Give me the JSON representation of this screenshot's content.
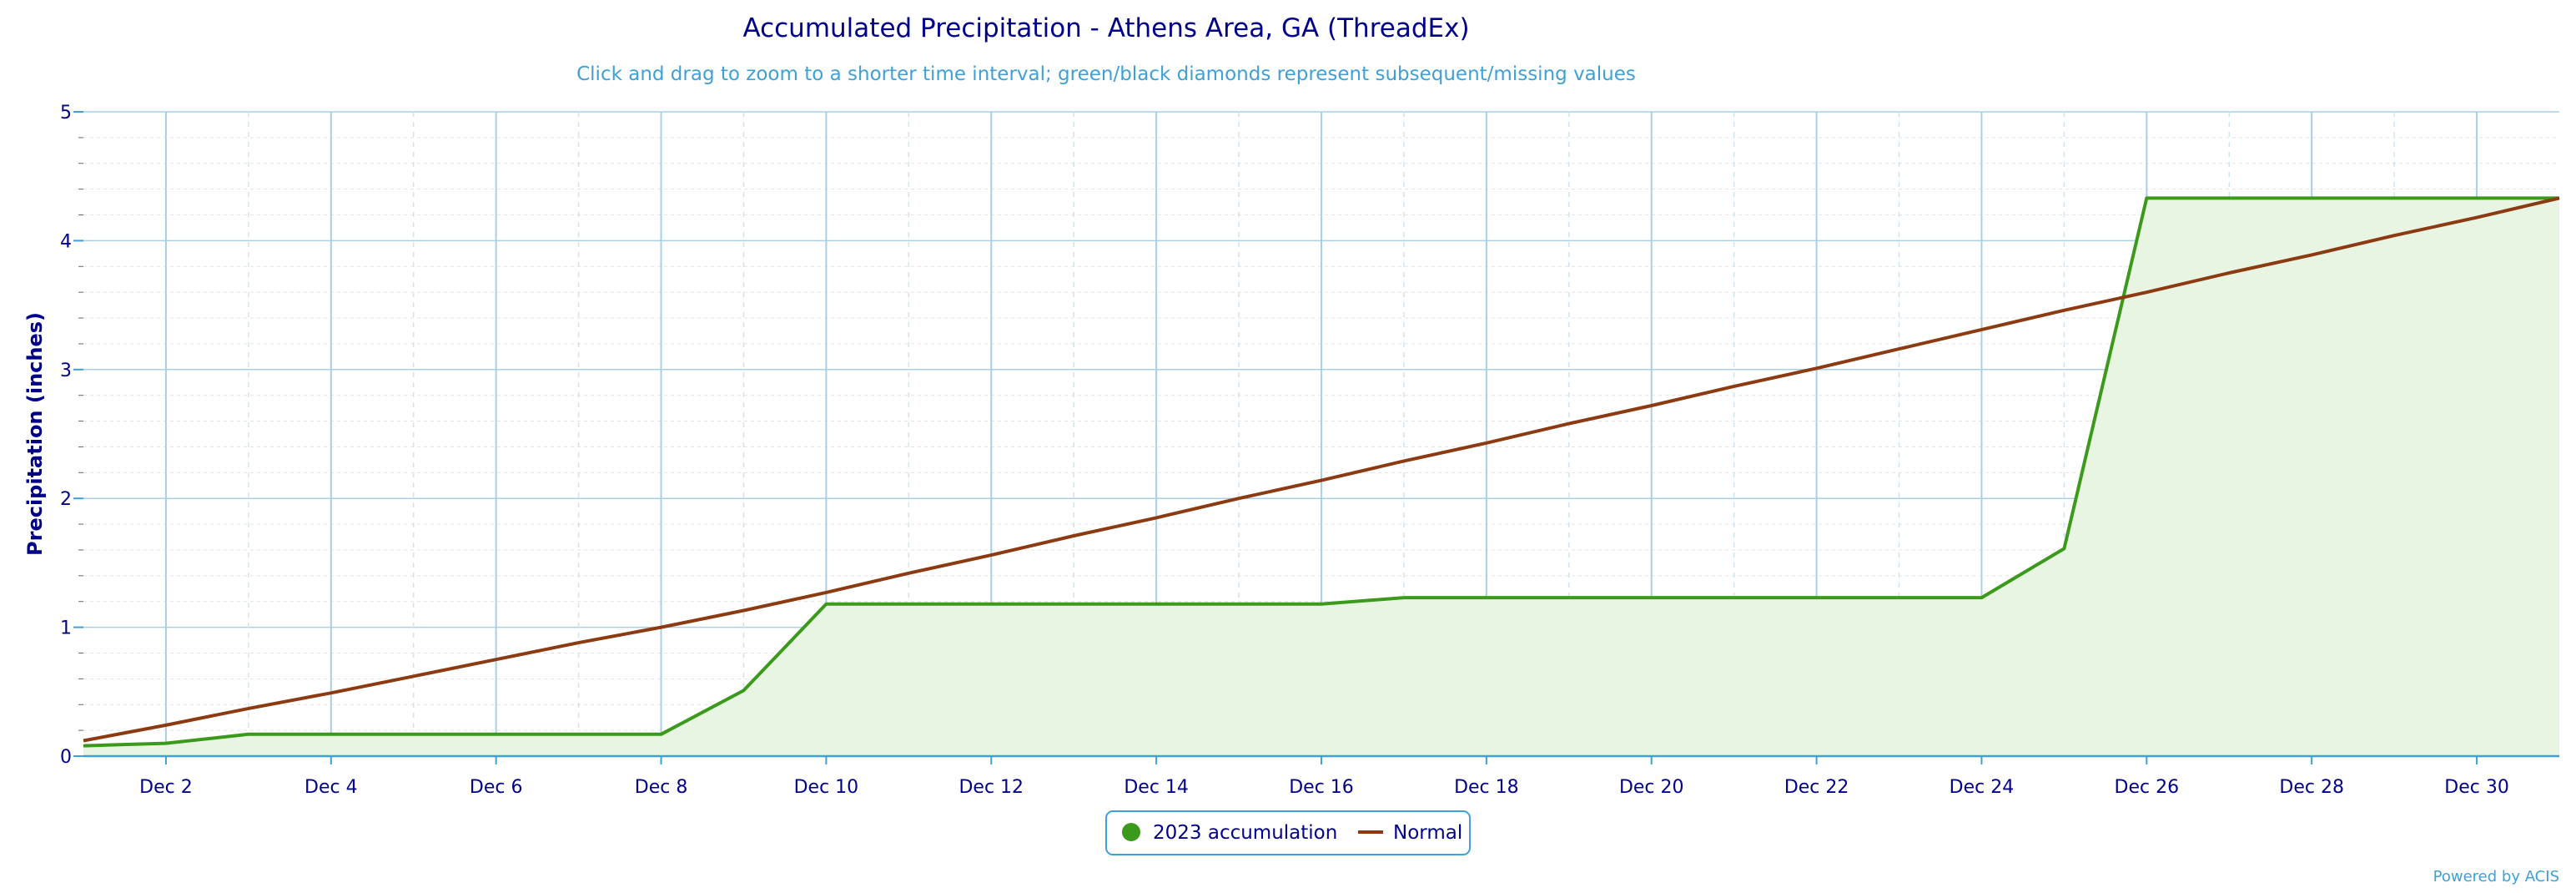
{
  "chart_data": {
    "type": "area",
    "title": "Accumulated Precipitation - Athens Area, GA (ThreadEx)",
    "subtitle": "Click and drag to zoom to a shorter time interval; green/black diamonds represent subsequent/missing values",
    "ylabel": "Precipitation (inches)",
    "xlabel": "",
    "ylim": [
      0,
      5
    ],
    "yticks": [
      "0",
      "1",
      "2",
      "3",
      "4",
      "5"
    ],
    "xlim": [
      1,
      31
    ],
    "xticks": [
      {
        "day": 2,
        "label": "Dec 2"
      },
      {
        "day": 4,
        "label": "Dec 4"
      },
      {
        "day": 6,
        "label": "Dec 6"
      },
      {
        "day": 8,
        "label": "Dec 8"
      },
      {
        "day": 10,
        "label": "Dec 10"
      },
      {
        "day": 12,
        "label": "Dec 12"
      },
      {
        "day": 14,
        "label": "Dec 14"
      },
      {
        "day": 16,
        "label": "Dec 16"
      },
      {
        "day": 18,
        "label": "Dec 18"
      },
      {
        "day": 20,
        "label": "Dec 20"
      },
      {
        "day": 22,
        "label": "Dec 22"
      },
      {
        "day": 24,
        "label": "Dec 24"
      },
      {
        "day": 26,
        "label": "Dec 26"
      },
      {
        "day": 28,
        "label": "Dec 28"
      },
      {
        "day": 30,
        "label": "Dec 30"
      }
    ],
    "grid": true,
    "legend_position": "bottom-center",
    "series": [
      {
        "name": "2023 accumulation",
        "color": "#3b9a1b",
        "fill": "#e9f5e3",
        "marker": "circle",
        "x": [
          1,
          2,
          3,
          4,
          5,
          6,
          7,
          8,
          9,
          10,
          11,
          12,
          13,
          14,
          15,
          16,
          17,
          18,
          19,
          20,
          21,
          22,
          23,
          24,
          25,
          26,
          27,
          28,
          29,
          30,
          31
        ],
        "values": [
          0.08,
          0.1,
          0.17,
          0.17,
          0.17,
          0.17,
          0.17,
          0.17,
          0.51,
          1.18,
          1.18,
          1.18,
          1.18,
          1.18,
          1.18,
          1.18,
          1.23,
          1.23,
          1.23,
          1.23,
          1.23,
          1.23,
          1.23,
          1.23,
          1.61,
          4.33,
          4.33,
          4.33,
          4.33,
          4.33,
          4.33
        ]
      },
      {
        "name": "Normal",
        "color": "#8b3a12",
        "marker": "line",
        "x": [
          1,
          2,
          3,
          4,
          5,
          6,
          7,
          8,
          9,
          10,
          11,
          12,
          13,
          14,
          15,
          16,
          17,
          18,
          19,
          20,
          21,
          22,
          23,
          24,
          25,
          26,
          27,
          28,
          29,
          30,
          31
        ],
        "values": [
          0.12,
          0.24,
          0.37,
          0.49,
          0.62,
          0.75,
          0.88,
          1.0,
          1.13,
          1.27,
          1.42,
          1.56,
          1.71,
          1.85,
          2.0,
          2.14,
          2.29,
          2.43,
          2.58,
          2.72,
          2.87,
          3.01,
          3.16,
          3.31,
          3.46,
          3.6,
          3.75,
          3.89,
          4.04,
          4.18,
          4.33
        ]
      }
    ]
  },
  "credit": "Powered by ACIS"
}
